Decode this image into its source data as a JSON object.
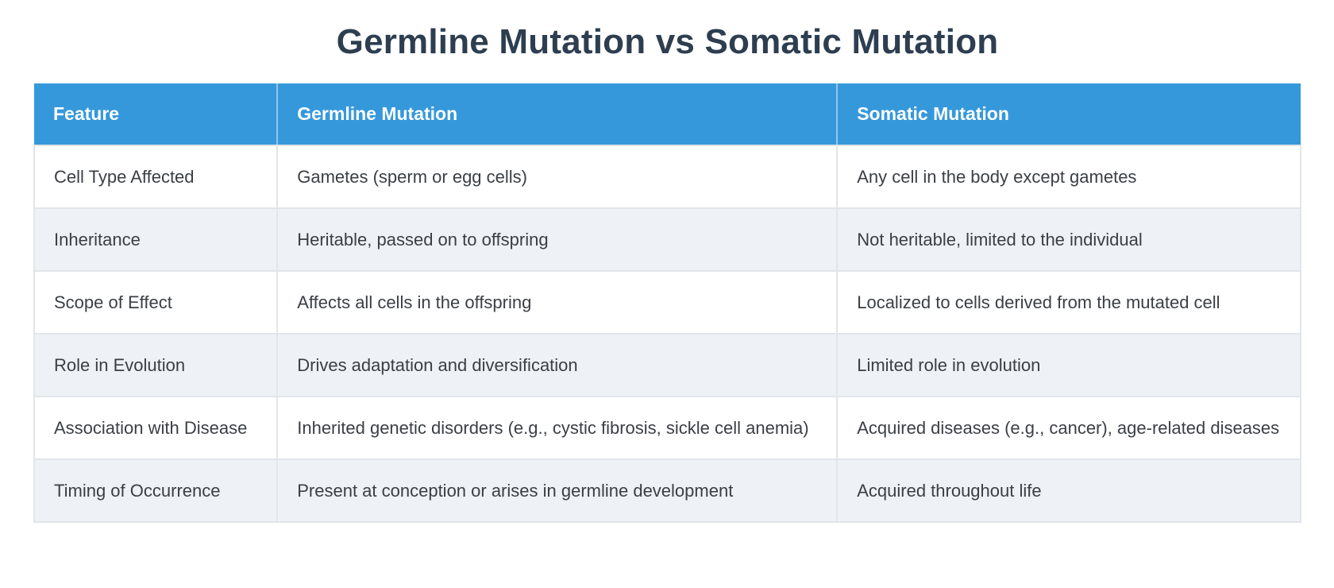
{
  "title": "Germline Mutation vs Somatic Mutation",
  "table": {
    "headers": [
      "Feature",
      "Germline Mutation",
      "Somatic Mutation"
    ],
    "rows": [
      {
        "feature": "Cell Type Affected",
        "germline": "Gametes (sperm or egg cells)",
        "somatic": "Any cell in the body except gametes"
      },
      {
        "feature": "Inheritance",
        "germline": "Heritable, passed on to offspring",
        "somatic": "Not heritable, limited to the individual"
      },
      {
        "feature": "Scope of Effect",
        "germline": "Affects all cells in the offspring",
        "somatic": "Localized to cells derived from the mutated cell"
      },
      {
        "feature": "Role in Evolution",
        "germline": "Drives adaptation and diversification",
        "somatic": "Limited role in evolution"
      },
      {
        "feature": "Association with Disease",
        "germline": "Inherited genetic disorders (e.g., cystic fibrosis, sickle cell anemia)",
        "somatic": "Acquired diseases (e.g., cancer), age-related diseases"
      },
      {
        "feature": "Timing of Occurrence",
        "germline": "Present at conception or arises in germline development",
        "somatic": "Acquired throughout life"
      }
    ]
  },
  "colors": {
    "header_bg": "#3598db",
    "header_text": "#ffffff",
    "title_text": "#2d3e50",
    "row_alt_bg": "#eef1f6",
    "body_text": "#3b3f44",
    "border": "#e2e5e9"
  }
}
